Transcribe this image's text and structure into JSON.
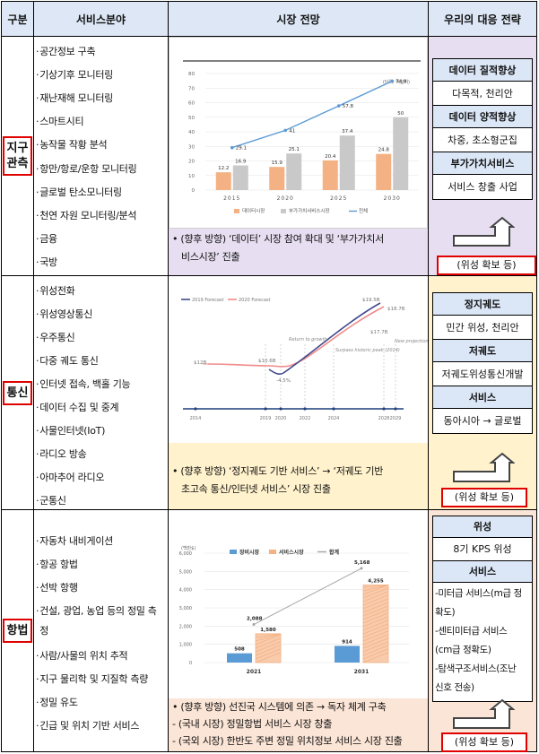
{
  "header": {
    "col1": "구분",
    "col2": "서비스분야",
    "col3": "시장 전망",
    "col4": "우리의 대응 전략"
  },
  "rows": [
    {
      "category_line1": "지구",
      "category_line2": "관측",
      "services": [
        "공간정보 구축",
        "기상기후 모니터링",
        "재난재해 모니터링",
        "스마트시티",
        "농작물 작황 분석",
        "항만/항로/운항 모니터링",
        "글로벌 탄소모니터링",
        "천연 자원 모니터링/분석",
        "금융",
        "국방"
      ],
      "note_line1": "• (향후 방향) ‘데이터’ 시장 참여 확대 및 ‘부가가치서",
      "note_line2": "비스시장’ 진출",
      "strategy": [
        {
          "title": "데이터 질적향상",
          "value": "다목적, 천리안"
        },
        {
          "title": "데이터 양적향상",
          "value": "차중, 초소형군집"
        },
        {
          "title": "부가가치서비스",
          "value": "서비스 창출 사업"
        }
      ],
      "secure_label": "(위성 확보 등)"
    },
    {
      "category_line1": "통신",
      "services": [
        "위성전화",
        "위성영상통신",
        "우주통신",
        "다중 궤도 통신",
        "인터넷 접속, 백홀 기능",
        "데이터 수집 및 중계",
        "사물인터넷(IoT)",
        "라디오 방송",
        "아마추어 라디오",
        "군통신"
      ],
      "note_line1": "• (향후 방향) ‘정지궤도 기반 서비스’ → ‘저궤도 기반",
      "note_line2": "초고속 통신/인터넷 서비스’ 시장 진출",
      "strategy": [
        {
          "title": "정지궤도",
          "value": "민간 위성, 천리안"
        },
        {
          "title": "저궤도",
          "value": "저궤도위성통신개발"
        },
        {
          "title": "서비스",
          "value": "동아시아 → 글로벌"
        }
      ],
      "secure_label": "(위성 확보 등)"
    },
    {
      "category_line1": "항법",
      "services": [
        "자동차 내비게이션",
        "항공 항법",
        "선박 항행",
        "건설, 광업, 농업 등의 정밀 측",
        "정",
        "사람/사물의 위치 추적",
        "지구 물리학 및 지질학 측량",
        "정밀 유도",
        "긴급 및 위치 기반 서비스"
      ],
      "note_line1": "• (향후 방향) 선진국 시스템에 의존 → 독자 체계 구축",
      "note_line2": " - (국내 시장) 정밀항법 서비스 시장 창출",
      "note_line3": " - (국외 시장) 한반도 주변 정밀 위치정보 서비스 시장 진출",
      "strategy_sat_title": "위성",
      "strategy_sat_value": "8기 KPS 위성",
      "strategy_svc_title": "서비스",
      "strategy_svc_items": [
        "-미터급 서비스(m급 정",
        "확도)",
        "-센티미터급 서비스",
        "(cm급 정확도)",
        "-탐색구조서비스(조난",
        "신호 전송)"
      ],
      "secure_label": "(위성 확보 등)"
    }
  ],
  "chart_data": [
    {
      "type": "bar",
      "unit_label": "(단위: 억달러)",
      "categories": [
        "2015",
        "2020",
        "2025",
        "2030"
      ],
      "series": [
        {
          "name": "데이터시장",
          "values": [
            12.2,
            15.9,
            20.4,
            24.8
          ],
          "color": "#f4b183"
        },
        {
          "name": "부가가치서비스시장",
          "values": [
            16.9,
            25.1,
            37.4,
            50
          ],
          "color": "#c9c9c9"
        },
        {
          "name": "전체",
          "values": [
            29.1,
            41,
            57.8,
            74.8
          ],
          "color": "#5b9bd5"
        }
      ],
      "ylim": [
        0,
        80
      ],
      "yticks": [
        0,
        10,
        20,
        30,
        40,
        50,
        60,
        70,
        80
      ]
    },
    {
      "type": "line",
      "series": [
        {
          "name": "2019 Forecast",
          "color": "#404a8c"
        },
        {
          "name": "2020 Forecast",
          "color": "#f08a8a"
        }
      ],
      "x_ticks": [
        "2014",
        "2019",
        "2020",
        "2022",
        "2024",
        "2028",
        "2029"
      ],
      "labels": {
        "start": "$12B",
        "dip_value": "$10.6B",
        "dip_pct": "-4.5%",
        "end_2019": "$19.5B",
        "end_2020": "$18.7B",
        "mid": "$17.7B"
      },
      "annotations": [
        "Return to growth",
        "Surpass historic peak (2014)",
        "New projection"
      ]
    },
    {
      "type": "bar",
      "unit_label": "(백만$)",
      "categories": [
        "2021",
        "2031"
      ],
      "series": [
        {
          "name": "장비시장",
          "values": [
            508,
            914
          ],
          "color": "#5b9bd5"
        },
        {
          "name": "서비스시장",
          "values": [
            1580,
            4255
          ],
          "color": "#f4b183"
        },
        {
          "name": "합계",
          "values": [
            2088,
            5168
          ],
          "color": "#a6a6a6"
        }
      ],
      "ylim": [
        0,
        6000
      ],
      "yticks": [
        "0",
        "1,000",
        "2,000",
        "3,000",
        "4,000",
        "5,000",
        "6,000"
      ],
      "value_labels": {
        "2021": [
          "508",
          "1,580",
          "2,088"
        ],
        "2031": [
          "914",
          "4,255",
          "5,168"
        ]
      }
    }
  ]
}
